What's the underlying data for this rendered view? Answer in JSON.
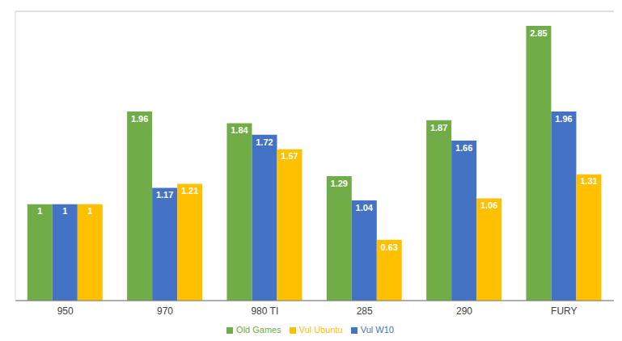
{
  "chart_data": {
    "type": "bar",
    "categories": [
      "950",
      "970",
      "980 TI",
      "285",
      "290",
      "FURY"
    ],
    "series": [
      {
        "name": "Old Games",
        "color": "#70ad47",
        "values": [
          1,
          1.96,
          1.84,
          1.29,
          1.87,
          2.85
        ]
      },
      {
        "name": "Vul W10",
        "color": "#4472c4",
        "values": [
          1,
          1.17,
          1.72,
          1.04,
          1.66,
          1.96
        ]
      },
      {
        "name": "Vul Ubuntu",
        "color": "#ffc000",
        "values": [
          1,
          1.21,
          1.57,
          0.63,
          1.06,
          1.31
        ]
      }
    ],
    "ylim": [
      0,
      3
    ],
    "yticks": [
      0,
      0.5,
      1,
      1.5,
      2,
      2.5,
      3
    ],
    "grid": true,
    "legend": "bottom",
    "data_labels": true,
    "tick_labels": "x"
  }
}
